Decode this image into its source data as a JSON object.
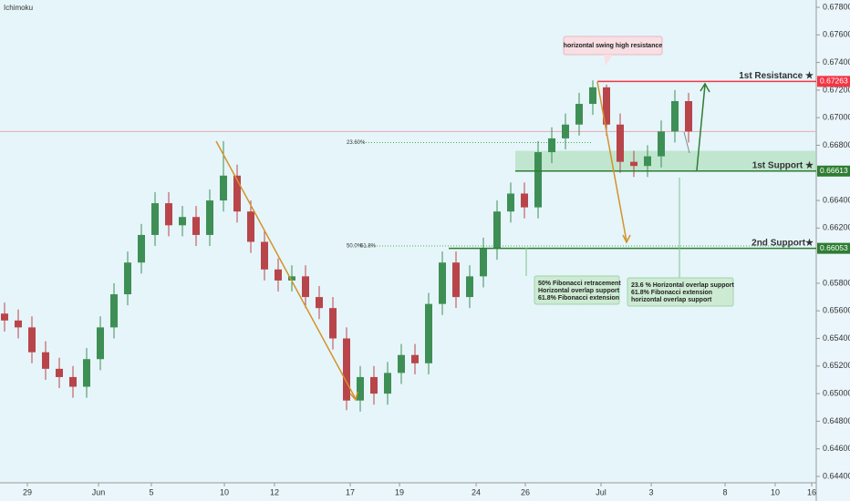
{
  "chart_data": {
    "type": "candlestick",
    "indicator": "Ichimoku",
    "x": [
      0,
      1,
      2,
      3,
      4,
      5,
      6,
      7,
      8,
      9,
      10,
      11,
      12,
      13,
      14,
      15,
      16,
      17,
      18,
      19,
      20,
      21,
      22,
      23,
      24,
      25,
      26,
      27,
      28,
      29,
      30,
      31,
      32,
      33,
      34,
      35,
      36,
      37,
      38,
      39,
      40,
      41,
      42,
      43,
      44,
      45,
      46,
      47,
      48,
      49,
      50
    ],
    "open": [
      0.6558,
      0.6553,
      0.6548,
      0.653,
      0.6518,
      0.6512,
      0.6505,
      0.6525,
      0.6548,
      0.6572,
      0.6595,
      0.6615,
      0.6638,
      0.6622,
      0.6628,
      0.6615,
      0.664,
      0.6658,
      0.6632,
      0.661,
      0.659,
      0.6582,
      0.6585,
      0.657,
      0.6562,
      0.654,
      0.6495,
      0.6512,
      0.65,
      0.6515,
      0.6528,
      0.6522,
      0.6565,
      0.6595,
      0.657,
      0.6585,
      0.6605,
      0.6632,
      0.6645,
      0.6635,
      0.6675,
      0.6685,
      0.6695,
      0.671,
      0.6722,
      0.6695,
      0.6668,
      0.6665,
      0.6672,
      0.669,
      0.6712
    ],
    "high": [
      0.6566,
      0.6561,
      0.6556,
      0.6538,
      0.6526,
      0.652,
      0.6533,
      0.6556,
      0.658,
      0.6603,
      0.6623,
      0.6646,
      0.6646,
      0.6636,
      0.6636,
      0.6648,
      0.6683,
      0.6666,
      0.664,
      0.6618,
      0.6598,
      0.6593,
      0.6593,
      0.6578,
      0.657,
      0.6548,
      0.652,
      0.652,
      0.6523,
      0.6536,
      0.6536,
      0.6573,
      0.6603,
      0.6603,
      0.6593,
      0.6613,
      0.664,
      0.6653,
      0.6653,
      0.6683,
      0.6693,
      0.6703,
      0.6718,
      0.6727,
      0.6724,
      0.6703,
      0.6676,
      0.668,
      0.6698,
      0.672,
      0.6718
    ],
    "low": [
      0.6545,
      0.654,
      0.6522,
      0.651,
      0.6504,
      0.6497,
      0.6497,
      0.6517,
      0.654,
      0.6564,
      0.6587,
      0.6607,
      0.6614,
      0.6614,
      0.6607,
      0.6607,
      0.6632,
      0.6624,
      0.6602,
      0.6582,
      0.6574,
      0.6574,
      0.6562,
      0.6554,
      0.6532,
      0.6488,
      0.6487,
      0.6492,
      0.6492,
      0.6507,
      0.6514,
      0.6514,
      0.6557,
      0.6562,
      0.6562,
      0.6577,
      0.6597,
      0.6624,
      0.6627,
      0.6627,
      0.6667,
      0.6677,
      0.6687,
      0.6702,
      0.6687,
      0.666,
      0.6657,
      0.6657,
      0.6664,
      0.6682,
      0.6682
    ],
    "close": [
      0.6553,
      0.6548,
      0.653,
      0.6518,
      0.6512,
      0.6505,
      0.6525,
      0.6548,
      0.6572,
      0.6595,
      0.6615,
      0.6638,
      0.6622,
      0.6628,
      0.6615,
      0.664,
      0.6658,
      0.6632,
      0.661,
      0.659,
      0.6582,
      0.6585,
      0.657,
      0.6562,
      0.654,
      0.6495,
      0.6512,
      0.65,
      0.6515,
      0.6528,
      0.6522,
      0.6565,
      0.6595,
      0.657,
      0.6585,
      0.6605,
      0.6632,
      0.6645,
      0.6635,
      0.6675,
      0.6685,
      0.6695,
      0.671,
      0.6722,
      0.6695,
      0.6668,
      0.6665,
      0.6672,
      0.669,
      0.6712,
      0.669
    ],
    "up_color": "#3d8f55",
    "down_color": "#b8454a",
    "xlim": [
      -0.333,
      59.333
    ],
    "xticks": [
      {
        "value": 1.67,
        "label": "29"
      },
      {
        "value": 6.87,
        "label": "Jun"
      },
      {
        "value": 10.73,
        "label": "5"
      },
      {
        "value": 16.07,
        "label": "10"
      },
      {
        "value": 19.73,
        "label": "12"
      },
      {
        "value": 25.27,
        "label": "17"
      },
      {
        "value": 28.87,
        "label": "19"
      },
      {
        "value": 34.47,
        "label": "24"
      },
      {
        "value": 38.07,
        "label": "26"
      },
      {
        "value": 43.6,
        "label": "Jul"
      },
      {
        "value": 47.27,
        "label": "3"
      },
      {
        "value": 52.67,
        "label": "8"
      },
      {
        "value": 56.33,
        "label": "10"
      },
      {
        "value": 59.0,
        "label": "16"
      }
    ],
    "ylim": [
      0.644,
      0.678
    ],
    "yticks": [
      {
        "value": 0.678,
        "label": "0.67800"
      },
      {
        "value": 0.676,
        "label": "0.67600"
      },
      {
        "value": 0.674,
        "label": "0.67400"
      },
      {
        "value": 0.672,
        "label": "0.67200"
      },
      {
        "value": 0.67,
        "label": "0.67000"
      },
      {
        "value": 0.668,
        "label": "0.66800"
      },
      {
        "value": 0.664,
        "label": "0.66400"
      },
      {
        "value": 0.662,
        "label": "0.66200"
      },
      {
        "value": 0.658,
        "label": "0.65800"
      },
      {
        "value": 0.656,
        "label": "0.65600"
      },
      {
        "value": 0.654,
        "label": "0.65400"
      },
      {
        "value": 0.652,
        "label": "0.65200"
      },
      {
        "value": 0.65,
        "label": "0.65000"
      },
      {
        "value": 0.648,
        "label": "0.64800"
      },
      {
        "value": 0.646,
        "label": "0.64600"
      },
      {
        "value": 0.644,
        "label": "0.64400"
      }
    ],
    "price_line": 0.669,
    "levels": [
      {
        "name": "1st Resistance ★",
        "value": 0.67263,
        "color": "#f23645"
      },
      {
        "name": "1st Support ★",
        "value": 0.66613,
        "color": "#2e7d32"
      },
      {
        "name": "2nd Support★",
        "value": 0.66053,
        "color": "#2e7d32"
      }
    ],
    "support_zone_top": 0.6676,
    "fib_levels": [
      {
        "label": "23.60%",
        "value": 0.6682
      },
      {
        "label": "50.0%",
        "value": 0.6607
      },
      {
        "label": "61.8%",
        "value": 0.6607
      }
    ],
    "annotations": [
      "horizontal swing high resistance",
      [
        "50% Fibonacci retracement",
        "Horizontal overlap support",
        "61.8% Fibonacci extension"
      ],
      [
        "23.6 % Horizontal overlap support",
        "61.8% Fibonacci extension",
        "horizontal overlap support"
      ]
    ]
  }
}
